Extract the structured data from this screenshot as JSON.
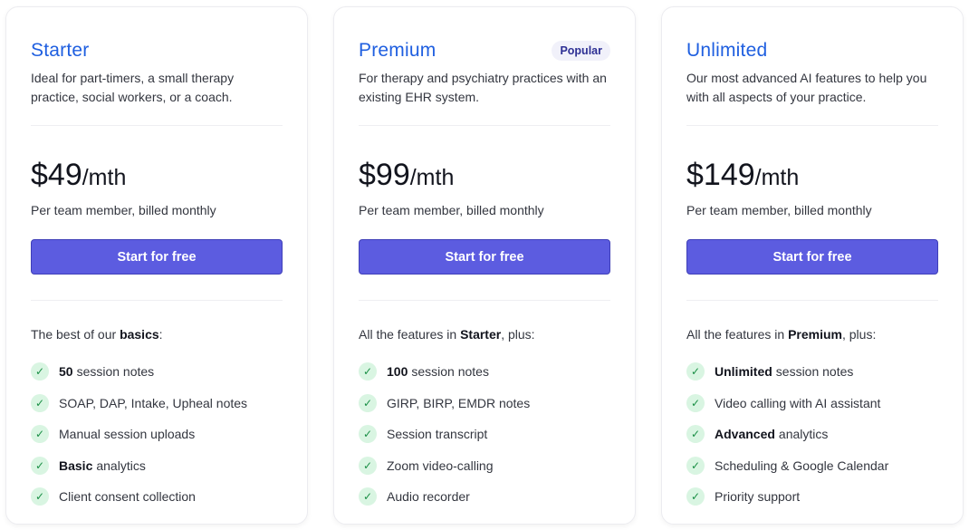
{
  "plans": [
    {
      "name": "Starter",
      "badge": "",
      "description": "Ideal for part-timers, a small therapy practice, social workers, or a coach.",
      "price": "$49",
      "unit": "/mth",
      "billing": "Per team member, billed monthly",
      "cta": "Start for free",
      "features_heading": {
        "pre": "The best of our ",
        "bold": "basics",
        "post": ":"
      },
      "features": [
        {
          "bold": "50",
          "text": "session notes"
        },
        {
          "bold": "",
          "text": "SOAP, DAP, Intake, Upheal notes"
        },
        {
          "bold": "",
          "text": "Manual session uploads"
        },
        {
          "bold": "Basic",
          "text": "analytics"
        },
        {
          "bold": "",
          "text": "Client consent collection"
        }
      ]
    },
    {
      "name": "Premium",
      "badge": "Popular",
      "description": "For therapy and psychiatry practices with an existing EHR system.",
      "price": "$99",
      "unit": "/mth",
      "billing": "Per team member, billed monthly",
      "cta": "Start for free",
      "features_heading": {
        "pre": "All the features in ",
        "bold": "Starter",
        "post": ", plus:"
      },
      "features": [
        {
          "bold": "100",
          "text": "session notes"
        },
        {
          "bold": "",
          "text": "GIRP, BIRP, EMDR notes"
        },
        {
          "bold": "",
          "text": "Session transcript"
        },
        {
          "bold": "",
          "text": "Zoom video-calling"
        },
        {
          "bold": "",
          "text": "Audio recorder"
        }
      ]
    },
    {
      "name": "Unlimited",
      "badge": "",
      "description": "Our most advanced AI features to help you with all aspects of your practice.",
      "price": "$149",
      "unit": "/mth",
      "billing": "Per team member, billed monthly",
      "cta": "Start for free",
      "features_heading": {
        "pre": "All the features in ",
        "bold": "Premium",
        "post": ", plus:"
      },
      "features": [
        {
          "bold": "Unlimited",
          "text": "session notes"
        },
        {
          "bold": "",
          "text": "Video calling with AI assistant"
        },
        {
          "bold": "Advanced",
          "text": "analytics"
        },
        {
          "bold": "",
          "text": "Scheduling & Google Calendar"
        },
        {
          "bold": "",
          "text": "Priority support"
        }
      ]
    }
  ],
  "colors": {
    "accent": "#5c5ce0",
    "title": "#1f5fe0",
    "check_bg": "#d9f5e2",
    "check": "#1a8f45"
  },
  "icons": {
    "feature": "check-icon"
  }
}
